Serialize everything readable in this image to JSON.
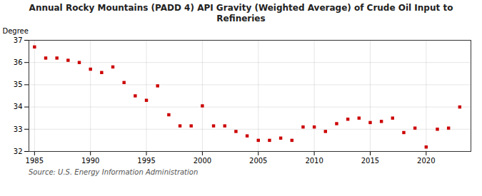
{
  "chart_data": {
    "type": "scatter",
    "title": "Annual Rocky Mountains (PADD 4) API Gravity (Weighted Average) of Crude Oil Input to\nRefineries",
    "ylabel": "Degree",
    "source": "Source: U.S. Energy Information Administration",
    "x": [
      1985,
      1986,
      1987,
      1988,
      1989,
      1990,
      1991,
      1992,
      1993,
      1994,
      1995,
      1996,
      1997,
      1998,
      1999,
      2000,
      2001,
      2002,
      2003,
      2004,
      2005,
      2006,
      2007,
      2008,
      2009,
      2010,
      2011,
      2012,
      2013,
      2014,
      2015,
      2016,
      2017,
      2018,
      2019,
      2020,
      2021,
      2022,
      2023
    ],
    "values": [
      36.7,
      36.2,
      36.2,
      36.1,
      36.0,
      35.7,
      35.55,
      35.8,
      35.1,
      34.5,
      34.3,
      34.95,
      33.65,
      33.15,
      33.15,
      34.05,
      33.15,
      33.15,
      32.9,
      32.7,
      32.5,
      32.5,
      32.6,
      32.5,
      33.1,
      33.1,
      32.9,
      33.25,
      33.45,
      33.5,
      33.3,
      33.35,
      33.5,
      32.85,
      33.05,
      32.2,
      33.0,
      33.05,
      34.0
    ],
    "color": "#cc0000",
    "marker": "square",
    "xlim": [
      1984.5,
      2024
    ],
    "xticks": [
      1985,
      1990,
      1995,
      2000,
      2005,
      2010,
      2015,
      2020
    ],
    "ylim": [
      32,
      37
    ],
    "yticks": [
      32,
      33,
      34,
      35,
      36,
      37
    ],
    "grid": true
  }
}
